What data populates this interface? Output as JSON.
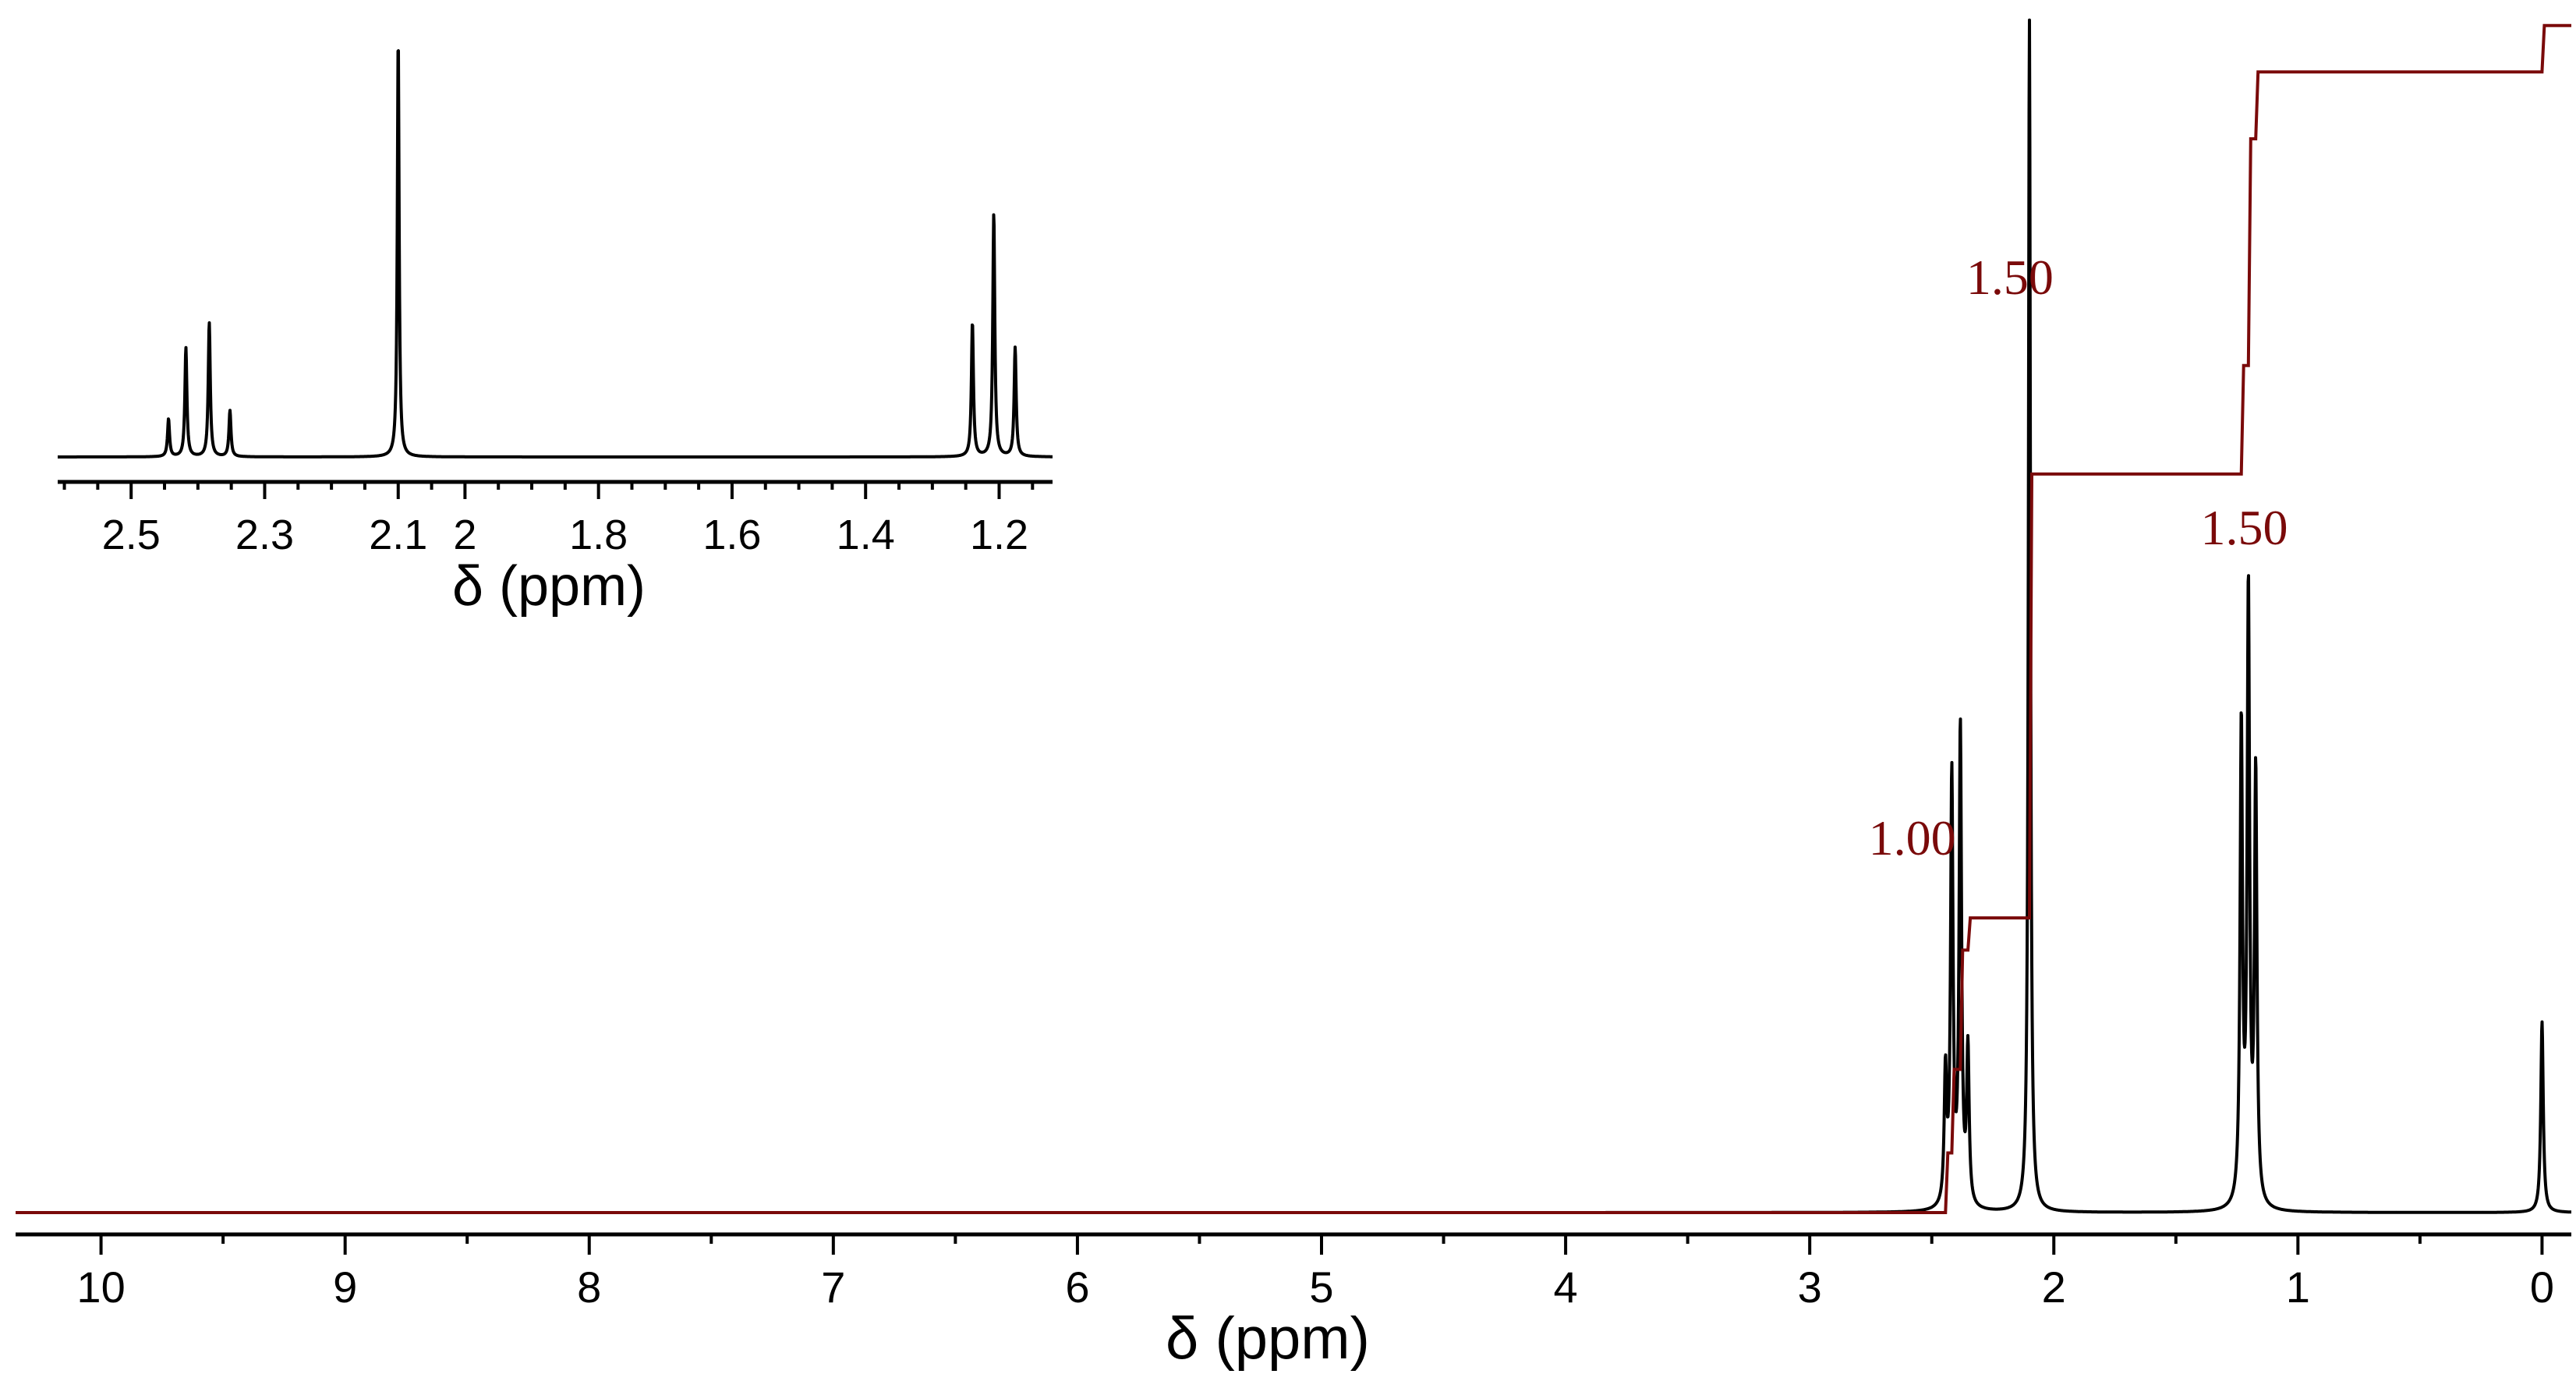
{
  "chart_data": [
    {
      "id": "main",
      "type": "line",
      "xlabel": "δ (ppm)",
      "xlim": [
        10.35,
        -0.12
      ],
      "x_reversed": true,
      "ylim": [
        0,
        1
      ],
      "major_ticks": [
        10,
        9,
        8,
        7,
        6,
        5,
        4,
        3,
        2,
        1,
        0
      ],
      "tick_labels": [
        "10",
        "9",
        "8",
        "7",
        "6",
        "5",
        "4",
        "3",
        "2",
        "1",
        "0"
      ],
      "minor_tick_step": 0.5,
      "spectrum_color": "#000000",
      "integral_color": "#7a0a0a",
      "peaks": [
        {
          "ppm": 2.444,
          "h": 0.11,
          "w": 0.006
        },
        {
          "ppm": 2.418,
          "h": 0.36,
          "w": 0.006
        },
        {
          "ppm": 2.383,
          "h": 0.4,
          "w": 0.006
        },
        {
          "ppm": 2.352,
          "h": 0.13,
          "w": 0.006
        },
        {
          "ppm": 2.1,
          "h": 1.0,
          "w": 0.005
        },
        {
          "ppm": 1.232,
          "h": 0.4,
          "w": 0.006
        },
        {
          "ppm": 1.203,
          "h": 0.51,
          "w": 0.006
        },
        {
          "ppm": 1.173,
          "h": 0.36,
          "w": 0.006
        },
        {
          "ppm": 0.0,
          "h": 0.16,
          "w": 0.006
        }
      ],
      "integral_steps": [
        {
          "ppm": 2.444,
          "level": 0.05
        },
        {
          "ppm": 2.418,
          "level": 0.12
        },
        {
          "ppm": 2.383,
          "level": 0.22
        },
        {
          "ppm": 2.352,
          "level": 0.247
        },
        {
          "ppm": 2.1,
          "level": 0.619
        },
        {
          "ppm": 1.232,
          "level": 0.71
        },
        {
          "ppm": 1.203,
          "level": 0.9
        },
        {
          "ppm": 1.173,
          "level": 0.956
        },
        {
          "ppm": 0.0,
          "level": 0.995
        }
      ],
      "integrals": [
        {
          "label": "1.00",
          "ppm": 2.58,
          "level": 0.3
        },
        {
          "label": "1.50",
          "ppm": 2.18,
          "level": 0.77
        },
        {
          "label": "1.50",
          "ppm": 1.22,
          "level": 0.56
        }
      ]
    },
    {
      "id": "inset",
      "type": "line",
      "xlabel": "δ (ppm)",
      "xlim": [
        2.61,
        1.12
      ],
      "x_reversed": true,
      "ylim": [
        0,
        1
      ],
      "major_ticks": [
        2.5,
        2.3,
        2.1,
        2.0,
        1.8,
        1.6,
        1.4,
        1.2
      ],
      "tick_labels": [
        "2.5",
        "2.3",
        "2.1",
        "2",
        "1.8",
        "1.6",
        "1.4",
        "1.2"
      ],
      "minor_tick_step": 0.05,
      "spectrum_color": "#000000",
      "peaks": [
        {
          "ppm": 2.444,
          "h": 0.09,
          "w": 0.0018
        },
        {
          "ppm": 2.418,
          "h": 0.26,
          "w": 0.0018
        },
        {
          "ppm": 2.383,
          "h": 0.32,
          "w": 0.0018
        },
        {
          "ppm": 2.352,
          "h": 0.11,
          "w": 0.0018
        },
        {
          "ppm": 2.1,
          "h": 1.0,
          "w": 0.0016
        },
        {
          "ppm": 1.24,
          "h": 0.32,
          "w": 0.0018
        },
        {
          "ppm": 1.208,
          "h": 0.58,
          "w": 0.0018
        },
        {
          "ppm": 1.176,
          "h": 0.26,
          "w": 0.0018
        }
      ]
    }
  ]
}
